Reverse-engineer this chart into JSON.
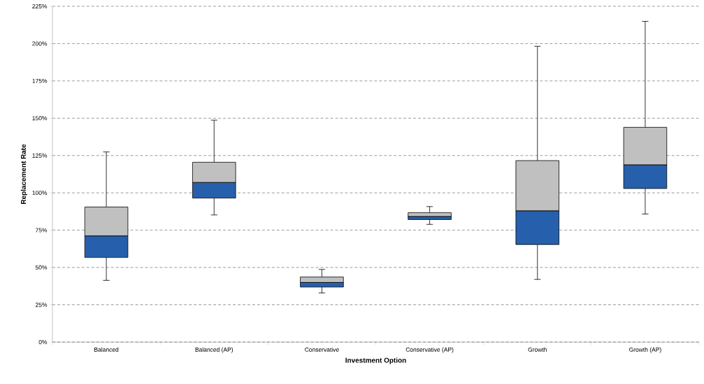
{
  "chart_data": {
    "type": "box",
    "xlabel": "Investment Option",
    "ylabel": "Replacement Rate",
    "categories": [
      "Balanced",
      "Balanced (AP)",
      "Conservative",
      "Conservative (AP)",
      "Growth",
      "Growth (AP)"
    ],
    "color": "#c0c0c0",
    "colors": [
      "#2660ac",
      "#2660ac",
      "#2660ac",
      "#2660ac",
      "#2660ac",
      "#2660ac"
    ],
    "boxes": [
      {
        "low": 41.4,
        "q1": 56.7,
        "median": 71.2,
        "q3": 90.5,
        "high": 127.4
      },
      {
        "low": 85.2,
        "q1": 96.5,
        "median": 107.0,
        "q3": 120.5,
        "high": 148.7
      },
      {
        "low": 32.9,
        "q1": 36.9,
        "median": 40.0,
        "q3": 43.6,
        "high": 48.7
      },
      {
        "low": 78.9,
        "q1": 82.1,
        "median": 84.2,
        "q3": 86.7,
        "high": 90.8
      },
      {
        "low": 42.0,
        "q1": 65.4,
        "median": 88.0,
        "q3": 121.6,
        "high": 198.2
      },
      {
        "low": 85.8,
        "q1": 102.9,
        "median": 118.8,
        "q3": 143.9,
        "high": 214.9
      }
    ],
    "ylim": [
      0,
      225
    ],
    "yticks": [
      {
        "value": 0,
        "label": "0%"
      },
      {
        "value": 25,
        "label": "25%"
      },
      {
        "value": 50,
        "label": "50%"
      },
      {
        "value": 75,
        "label": "75%"
      },
      {
        "value": 100,
        "label": "100%"
      },
      {
        "value": 125,
        "label": "125%"
      },
      {
        "value": 150,
        "label": "150%"
      },
      {
        "value": 175,
        "label": "175%"
      },
      {
        "value": 200,
        "label": "200%"
      },
      {
        "value": 225,
        "label": "225%"
      }
    ],
    "grid": "y",
    "line_style": "dashed"
  }
}
